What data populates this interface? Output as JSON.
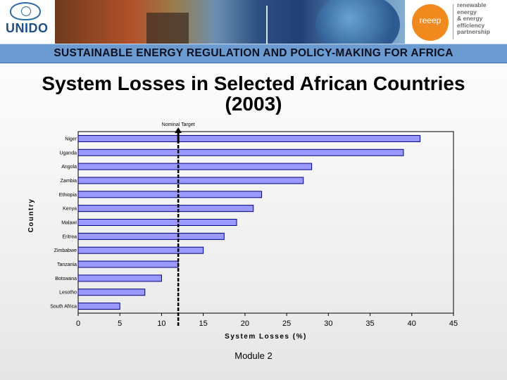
{
  "header": {
    "left_logo": "UNIDO",
    "right_logo_word": "reeep",
    "right_logo_tagline": [
      "renewable",
      "energy",
      "& energy",
      "efficiency",
      "partnership"
    ]
  },
  "band_title": "SUSTAINABLE ENERGY REGULATION AND POLICY-MAKING FOR AFRICA",
  "slide_title": "System Losses in Selected African Countries (2003)",
  "footer_text": "Module 2",
  "chart_data": {
    "type": "bar",
    "orientation": "horizontal",
    "categories": [
      "Niger",
      "Uganda",
      "Angola",
      "Zambia",
      "Ethiopia",
      "Kenya",
      "Malawi",
      "Eritrea",
      "Zimbabwe",
      "Tanzania",
      "Botswana",
      "Lesotho",
      "South Africa"
    ],
    "values": [
      41,
      39,
      28,
      27,
      22,
      21,
      19,
      17.5,
      15,
      12,
      10,
      8,
      5
    ],
    "xlabel": "System Losses (%)",
    "ylabel": "Country",
    "xlim": [
      0,
      45
    ],
    "xticks": [
      0,
      5,
      10,
      15,
      20,
      25,
      30,
      35,
      40,
      45
    ],
    "bar_color": "#9999ff",
    "reference_line": {
      "value": 12,
      "label": "Nominal Target"
    },
    "grid": false,
    "legend": "none"
  }
}
